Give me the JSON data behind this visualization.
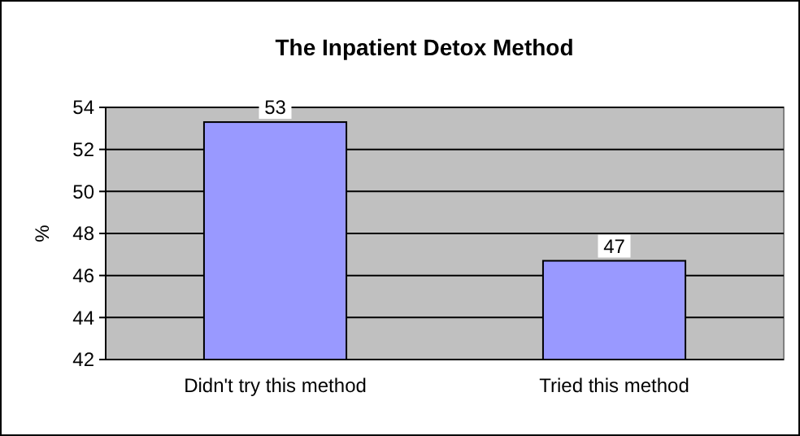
{
  "chart_data": {
    "type": "bar",
    "title": "The Inpatient Detox Method",
    "ylabel": "%",
    "categories": [
      "Didn't try this method",
      "Tried this method"
    ],
    "values": [
      53.3,
      46.7
    ],
    "value_labels": [
      "53",
      "47"
    ],
    "color": "#9999ff",
    "ylim": [
      42,
      54
    ],
    "yticks": [
      42,
      44,
      46,
      48,
      50,
      52,
      54
    ],
    "grid": "y"
  }
}
